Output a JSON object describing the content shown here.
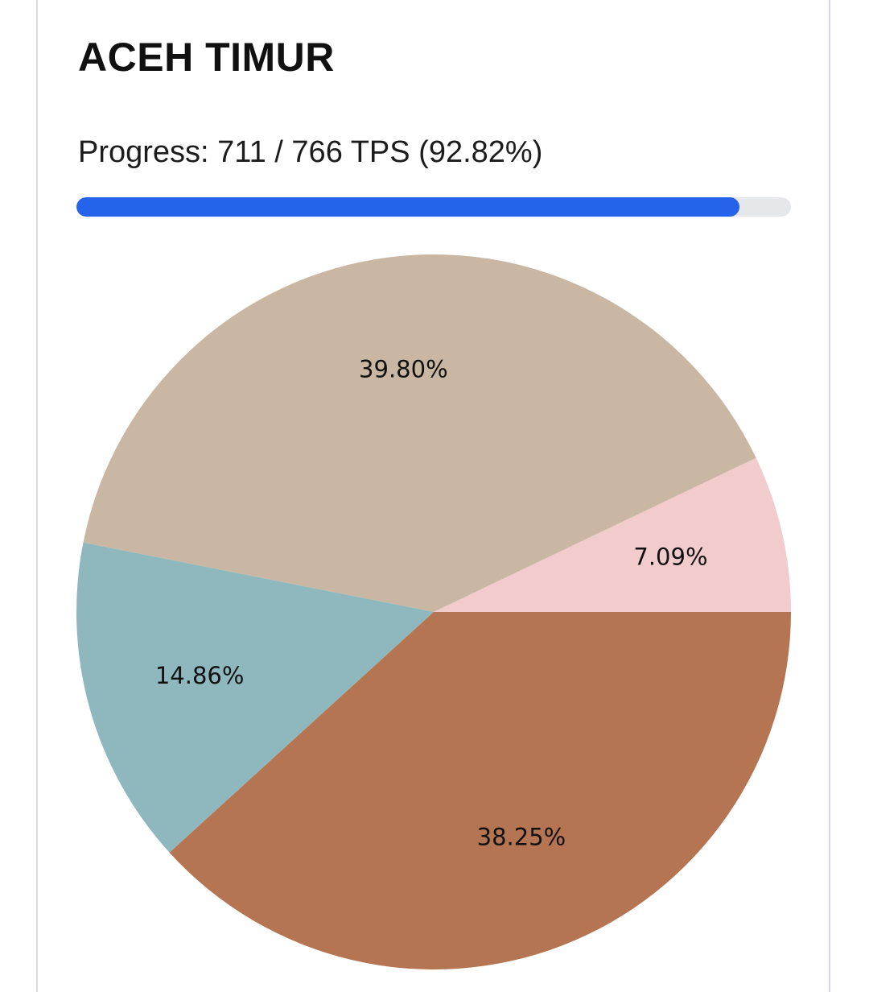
{
  "header": {
    "title": "ACEH TIMUR",
    "progress_text": "Progress: 711 / 766 TPS (92.82%)",
    "progress_done": 711,
    "progress_total": 766,
    "progress_percent": 92.82
  },
  "colors": {
    "progress_fill": "#2563eb",
    "progress_track": "#e5e7eb"
  },
  "chart_data": {
    "type": "pie",
    "start_angle_deg": 0,
    "direction": "counterclockwise",
    "slices": [
      {
        "value": 7.09,
        "label": "7.09%",
        "color": "#f2cbcc"
      },
      {
        "value": 39.8,
        "label": "39.80%",
        "color": "#c9b7a3"
      },
      {
        "value": 14.86,
        "label": "14.86%",
        "color": "#8fb8be"
      },
      {
        "value": 38.25,
        "label": "38.25%",
        "color": "#b57552"
      }
    ]
  }
}
